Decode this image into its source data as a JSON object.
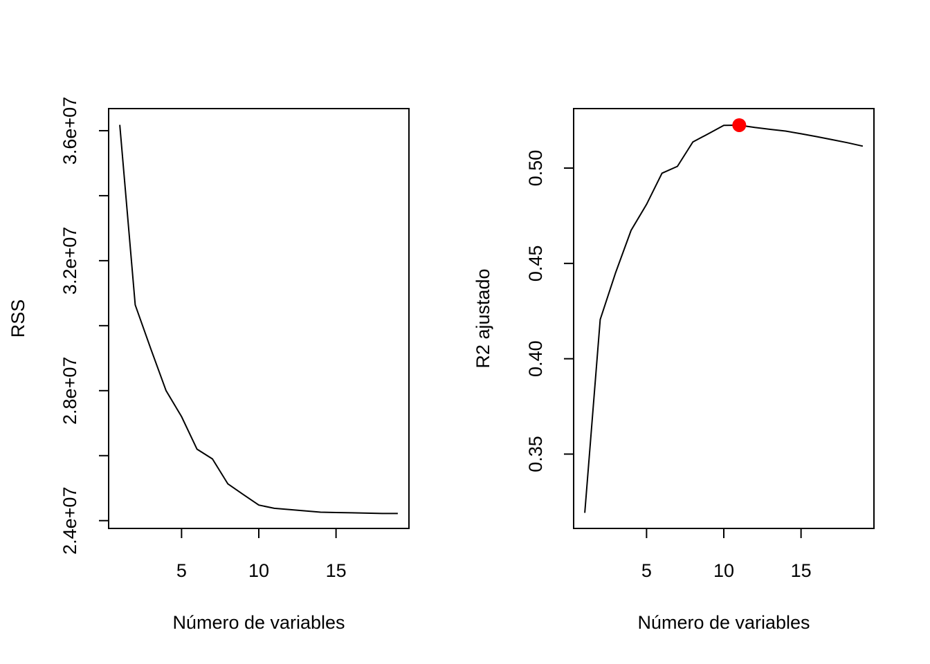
{
  "chart_data": [
    {
      "type": "line",
      "title": "",
      "xlabel": "Número de variables",
      "ylabel": "RSS",
      "xlim": [
        0.28,
        19.72
      ],
      "ylim": [
        23760000,
        36680000
      ],
      "x_ticks": [
        5,
        10,
        15
      ],
      "x_tick_labels": [
        "5",
        "10",
        "15"
      ],
      "y_ticks": [
        24000000,
        26000000,
        28000000,
        30000000,
        32000000,
        34000000,
        36000000
      ],
      "y_tick_labels": [
        "2.4e+07",
        "",
        "2.8e+07",
        "",
        "3.2e+07",
        "",
        "3.6e+07"
      ],
      "grid": false,
      "series": [
        {
          "x": [
            1,
            2,
            3,
            4,
            5,
            6,
            7,
            8,
            9,
            10,
            11,
            12,
            13,
            14,
            15,
            16,
            17,
            18,
            19
          ],
          "values": [
            36180000,
            30640000,
            29300000,
            28000000,
            27200000,
            26200000,
            25900000,
            25130000,
            24800000,
            24480000,
            24380000,
            24340000,
            24300000,
            24260000,
            24250000,
            24240000,
            24230000,
            24220000,
            24220000
          ],
          "color": "#000000"
        }
      ]
    },
    {
      "type": "line",
      "title": "",
      "xlabel": "Número de variables",
      "ylabel": "R2 ajustado",
      "xlim": [
        0.28,
        19.72
      ],
      "ylim": [
        0.311,
        0.5312
      ],
      "x_ticks": [
        5,
        10,
        15
      ],
      "x_tick_labels": [
        "5",
        "10",
        "15"
      ],
      "y_ticks": [
        0.35,
        0.4,
        0.45,
        0.5
      ],
      "y_tick_labels": [
        "0.35",
        "0.40",
        "0.45",
        "0.50"
      ],
      "grid": false,
      "series": [
        {
          "x": [
            1,
            2,
            3,
            4,
            5,
            6,
            7,
            8,
            9,
            10,
            11,
            12,
            13,
            14,
            15,
            16,
            17,
            18,
            19
          ],
          "values": [
            0.3192,
            0.4206,
            0.4452,
            0.4673,
            0.481,
            0.4973,
            0.5009,
            0.5137,
            0.518,
            0.5224,
            0.5225,
            0.5213,
            0.5203,
            0.5194,
            0.518,
            0.5165,
            0.5149,
            0.5133,
            0.5115
          ],
          "color": "#000000"
        }
      ],
      "highlight": {
        "x": 11,
        "y": 0.5225,
        "color": "#ff0000"
      }
    }
  ]
}
